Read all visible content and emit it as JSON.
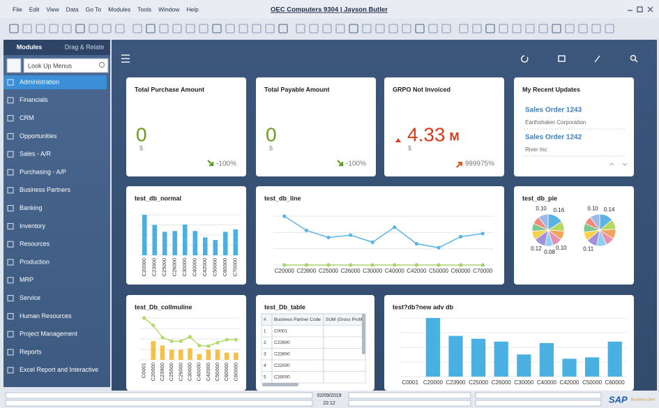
{
  "window_title": "OEC Computers 9304 | Jayson Butler",
  "menu": [
    "File",
    "Edit",
    "View",
    "Data",
    "Go To",
    "Modules",
    "Tools",
    "Window",
    "Help"
  ],
  "sidebar": {
    "tabs": [
      "Modules",
      "Drag & Relate"
    ],
    "search_placeholder": "Look Up Menus",
    "modules": [
      "Administration",
      "Financials",
      "CRM",
      "Opportunities",
      "Sales - A/R",
      "Purchasing - A/P",
      "Business Partners",
      "Banking",
      "Inventory",
      "Resources",
      "Production",
      "MRP",
      "Service",
      "Human Resources",
      "Project Management",
      "Reports",
      "Excel Report and Interactive"
    ]
  },
  "kpis": [
    {
      "title": "Total Purchase Amount",
      "value": "0",
      "unit": "$",
      "change": "-100%"
    },
    {
      "title": "Total Payable Amount",
      "value": "0",
      "unit": "$",
      "change": "-100%"
    },
    {
      "title": "GRPO Not Invoiced",
      "value": "4.33",
      "suffix": "M",
      "unit": "$",
      "change": "999975%"
    }
  ],
  "recent_updates": {
    "title": "My Recent Updates",
    "items": [
      {
        "title": "Sales Order 1243",
        "subtitle": "Earthshaker Corporation"
      },
      {
        "title": "Sales Order 1242",
        "subtitle": "River Inc"
      }
    ]
  },
  "table": {
    "title": "test_Db_table",
    "headers": [
      "#",
      "Business Partner Code",
      "SUM (Gross Profit"
    ],
    "rows": [
      [
        "1",
        "C0001"
      ],
      [
        "2",
        "C23900"
      ],
      [
        "3",
        "C23900"
      ],
      [
        "4",
        "C22000"
      ],
      [
        "5",
        "C26000"
      ]
    ]
  },
  "status": {
    "date": "02/09/2019",
    "time": "22:12"
  },
  "brand": {
    "name": "SAP",
    "product": "Business One"
  },
  "chart_data": [
    {
      "type": "bar",
      "title": "test_db_normal",
      "color": "#4ab0e2",
      "categories": [
        "C20000",
        "C23900",
        "C25000",
        "C26000",
        "C30000",
        "C40000",
        "C42000",
        "C50000",
        "C60000",
        "C70000"
      ],
      "values": [
        100,
        75,
        58,
        60,
        76,
        60,
        44,
        38,
        58,
        64
      ]
    },
    {
      "type": "line",
      "title": "test_db_line",
      "categories": [
        "C20000",
        "C23900",
        "C25000",
        "C26000",
        "C30000",
        "C40000",
        "C42000",
        "C50000",
        "C60000",
        "C70000"
      ],
      "series": [
        {
          "color": "#5ab4e3",
          "values": [
            62,
            44,
            35,
            38,
            29,
            48,
            27,
            22,
            36,
            40
          ]
        },
        {
          "color": "#a8d26a",
          "values": [
            0,
            0,
            0,
            0,
            0,
            0,
            0,
            0,
            0,
            0
          ]
        }
      ]
    },
    {
      "type": "pie",
      "title": "test_db_pie",
      "colors": [
        "#5ab4e3",
        "#b7d85a",
        "#f2a45a",
        "#e88fb5",
        "#8fd0f0",
        "#a58fd8",
        "#f5d24a",
        "#7fc58f",
        "#f08a7a",
        "#9fb8e8"
      ],
      "series": [
        {
          "values": [
            0.16,
            0.1,
            0.09,
            0.1,
            0.08,
            0.12,
            0.09,
            0.08,
            0.08,
            0.1
          ],
          "value_labels": [
            "0.16",
            null,
            null,
            "0.10",
            "0.08",
            "0.12",
            null,
            null,
            null,
            "0.10"
          ]
        },
        {
          "values": [
            0.14,
            0.1,
            0.1,
            0.09,
            0.1,
            0.11,
            0.09,
            0.09,
            0.08,
            0.1
          ],
          "value_labels": [
            "0.14",
            null,
            null,
            null,
            null,
            "0.11",
            null,
            null,
            null,
            "0.10"
          ]
        }
      ]
    },
    {
      "type": "combo",
      "title": "test_Db_collmuline",
      "categories": [
        "C0001",
        "C20000",
        "C23900",
        "C25000",
        "C26000",
        "C30000",
        "C40000",
        "C42000",
        "C50000",
        "C60000",
        "C60000"
      ],
      "series": [
        {
          "type": "bar",
          "color": "#f5c04a",
          "values": [
            0,
            26,
            20,
            14,
            14,
            16,
            8,
            14,
            14,
            10,
            10
          ]
        },
        {
          "type": "line",
          "color": "#b5d96b",
          "values": [
            58,
            48,
            31,
            26,
            26,
            32,
            20,
            19,
            24,
            28,
            28
          ]
        }
      ]
    },
    {
      "type": "bar",
      "title": "test?db?new adv db",
      "color": "#4ab0e2",
      "categories": [
        "C0001",
        "C20000",
        "C23900",
        "C25000",
        "C26000",
        "C30000",
        "C40000",
        "C42000",
        "C50000",
        "C60000"
      ],
      "values": [
        0,
        82,
        57,
        53,
        49,
        31,
        47,
        25,
        27,
        49
      ]
    }
  ]
}
